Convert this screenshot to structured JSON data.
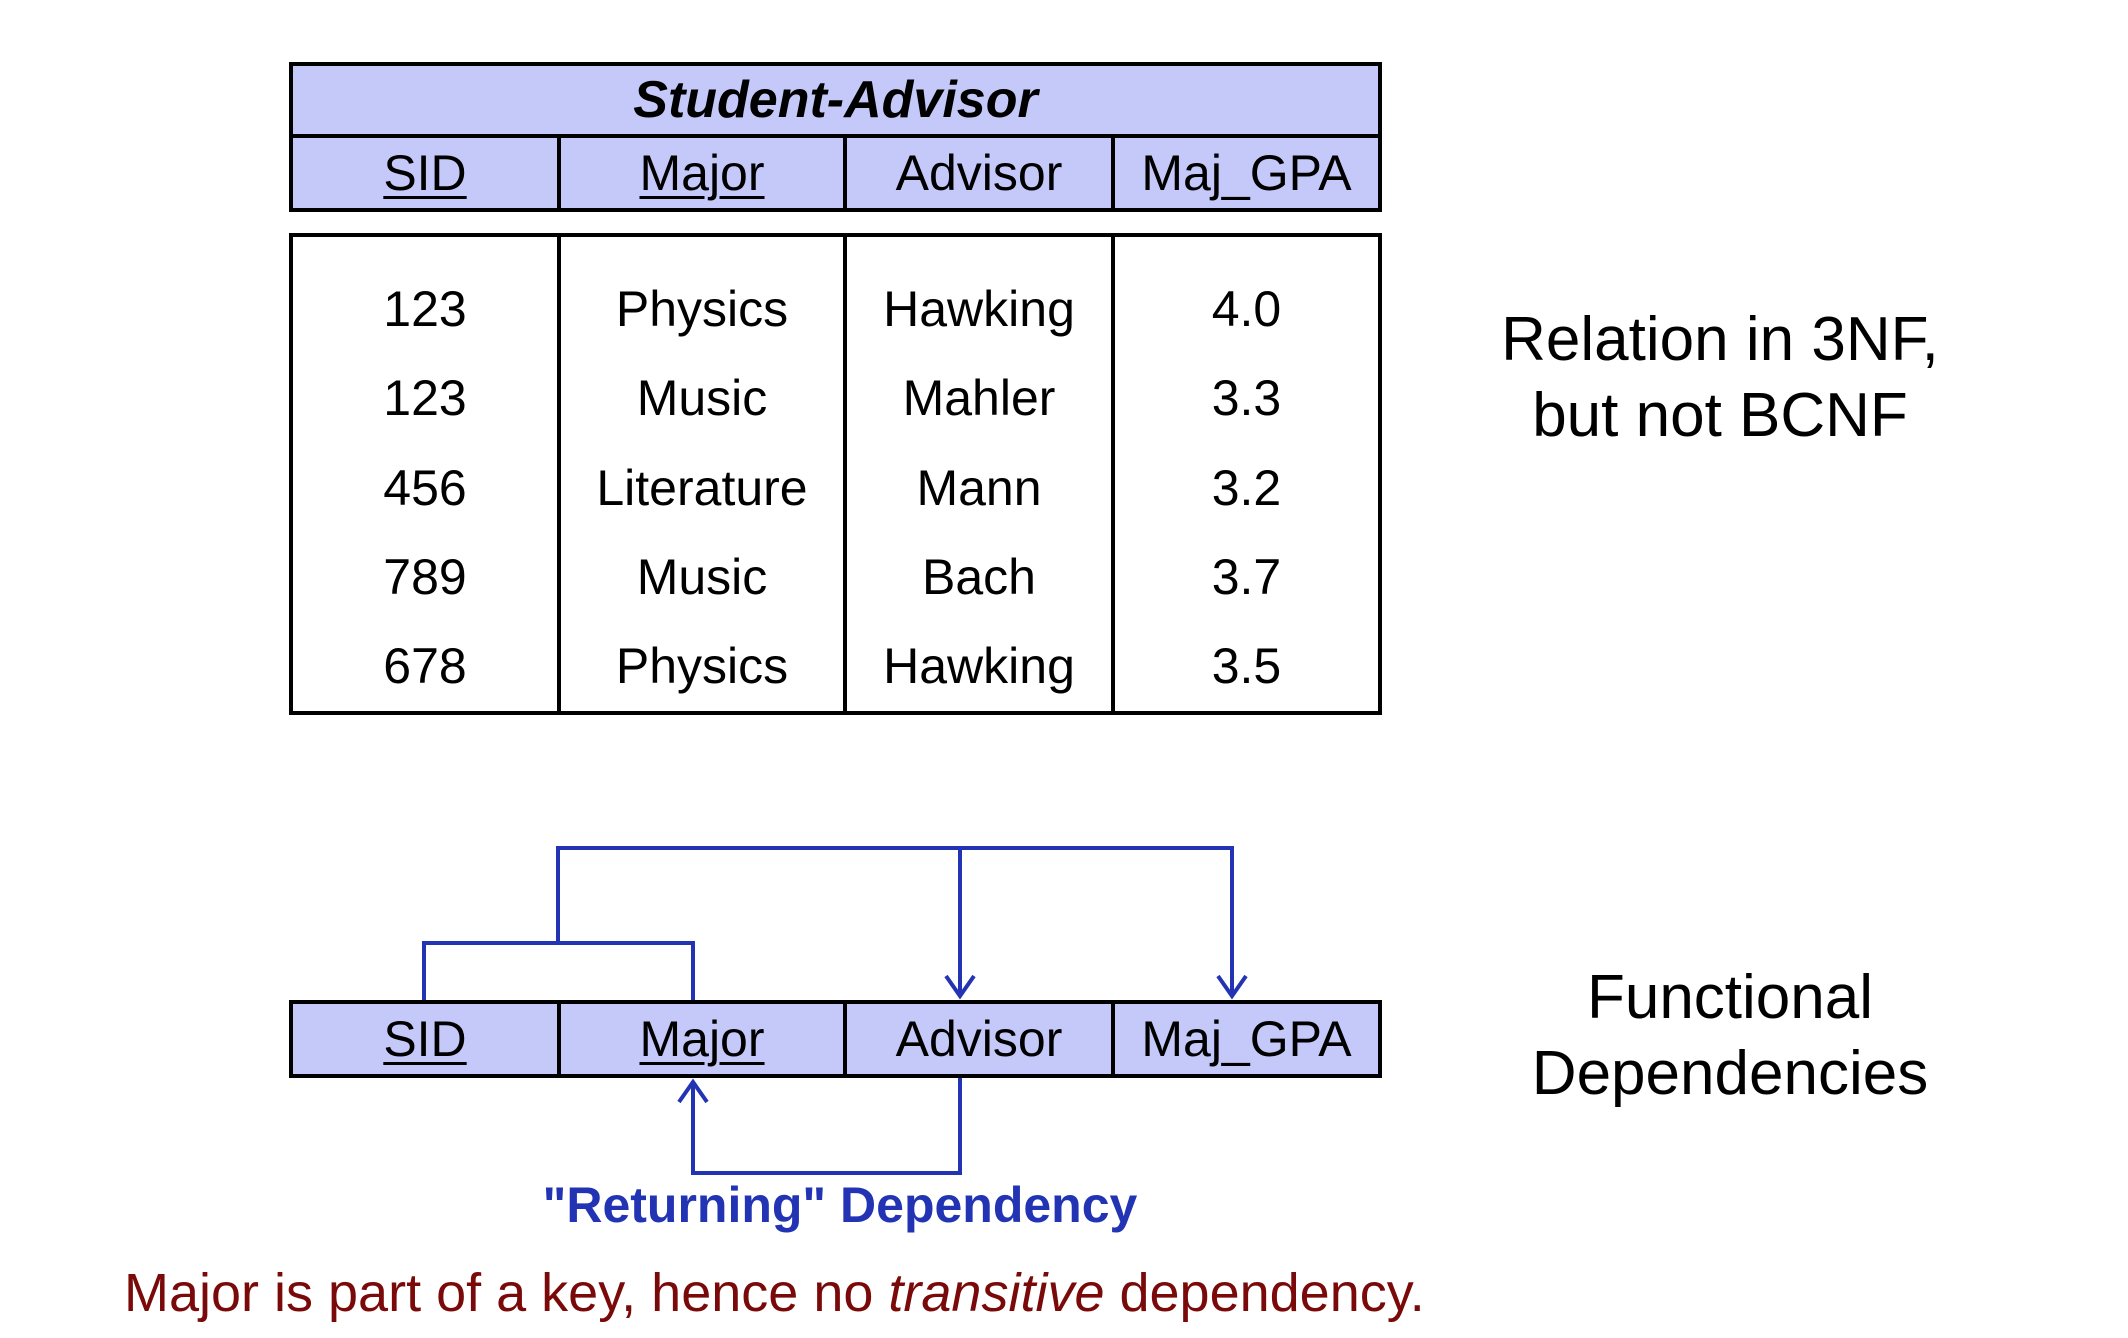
{
  "relation": {
    "title": "Student-Advisor",
    "columns": [
      "SID",
      "Major",
      "Advisor",
      "Maj_GPA"
    ],
    "rows": [
      [
        "123",
        "Physics",
        "Hawking",
        "4.0"
      ],
      [
        "123",
        "Music",
        "Mahler",
        "3.3"
      ],
      [
        "456",
        "Literature",
        "Mann",
        "3.2"
      ],
      [
        "789",
        "Music",
        "Bach",
        "3.7"
      ],
      [
        "678",
        "Physics",
        "Hawking",
        "3.5"
      ]
    ]
  },
  "relation_note": {
    "line1": "Relation in 3NF,",
    "line2": "but not BCNF"
  },
  "fd_note": {
    "line1": "Functional",
    "line2": "Dependencies"
  },
  "returning_label": "\"Returning\" Dependency",
  "footer": {
    "before": "Major is part of a key, hence no ",
    "emph": "transitive",
    "after": " dependency."
  },
  "colors": {
    "header_fill": "#c5c9f9",
    "arrow": "#2234b4",
    "footer_text": "#7a0a0a"
  }
}
